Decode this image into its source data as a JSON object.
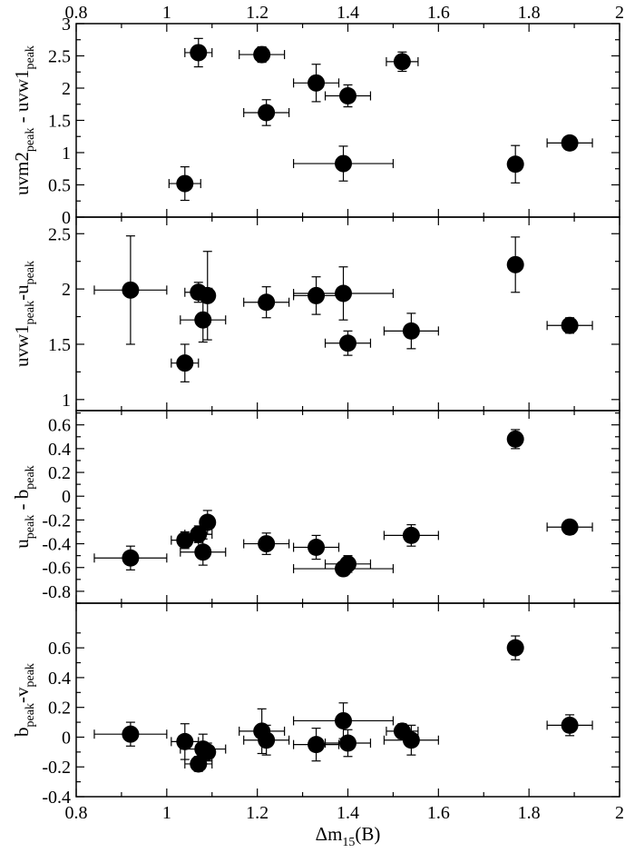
{
  "chart_data": {
    "type": "scatter",
    "layout": "four vertically stacked panels sharing x axis",
    "x_axis": {
      "label_main": "Δm",
      "label_sub": "15",
      "label_tail": "(B)",
      "range": [
        0.8,
        2.0
      ],
      "ticks": [
        0.8,
        1,
        1.2,
        1.4,
        1.6,
        1.8,
        2
      ],
      "tick_labels": [
        "0.8",
        "1",
        "1.2",
        "1.4",
        "1.6",
        "1.8",
        "2"
      ],
      "top_tick_labels": true
    },
    "grid": false,
    "panels": [
      {
        "ylabel_parts": [
          [
            "uvm2",
            false
          ],
          [
            "peak",
            true
          ],
          [
            " - uvw1",
            false
          ],
          [
            "peak",
            true
          ]
        ],
        "ylim": [
          0,
          3
        ],
        "yticks": [
          0,
          0.5,
          1,
          1.5,
          2,
          2.5,
          3
        ],
        "ytick_labels": [
          "0",
          "0.5",
          "1",
          "1.5",
          "2",
          "2.5",
          "3"
        ],
        "points": [
          {
            "x": 1.04,
            "y": 0.52,
            "xerr": 0.035,
            "yerr": 0.26
          },
          {
            "x": 1.07,
            "y": 2.55,
            "xerr": 0.03,
            "yerr": 0.22
          },
          {
            "x": 1.21,
            "y": 2.52,
            "xerr": 0.05,
            "yerr": 0.12
          },
          {
            "x": 1.22,
            "y": 1.62,
            "xerr": 0.05,
            "yerr": 0.2
          },
          {
            "x": 1.33,
            "y": 2.08,
            "xerr": 0.05,
            "yerr": 0.29
          },
          {
            "x": 1.39,
            "y": 0.83,
            "xerr": 0.11,
            "yerr": 0.27
          },
          {
            "x": 1.4,
            "y": 1.88,
            "xerr": 0.05,
            "yerr": 0.17
          },
          {
            "x": 1.52,
            "y": 2.41,
            "xerr": 0.035,
            "yerr": 0.15
          },
          {
            "x": 1.77,
            "y": 0.82,
            "xerr": 0.0,
            "yerr": 0.29
          },
          {
            "x": 1.89,
            "y": 1.15,
            "xerr": 0.05,
            "yerr": 0.06
          }
        ]
      },
      {
        "ylabel_parts": [
          [
            "uvw1",
            false
          ],
          [
            "peak",
            true
          ],
          [
            "-u",
            false
          ],
          [
            "peak",
            true
          ]
        ],
        "ylim": [
          0.9,
          2.65
        ],
        "yticks": [
          1,
          1.5,
          2,
          2.5
        ],
        "ytick_labels": [
          "1",
          "1.5",
          "2",
          "2.5"
        ],
        "points": [
          {
            "x": 0.92,
            "y": 1.99,
            "xerr": 0.08,
            "yerr": 0.49
          },
          {
            "x": 1.04,
            "y": 1.33,
            "xerr": 0.03,
            "yerr": 0.17
          },
          {
            "x": 1.07,
            "y": 1.97,
            "xerr": 0.03,
            "yerr": 0.09
          },
          {
            "x": 1.08,
            "y": 1.72,
            "xerr": 0.05,
            "yerr": 0.2
          },
          {
            "x": 1.09,
            "y": 1.94,
            "xerr": 0.0,
            "yerr": 0.4
          },
          {
            "x": 1.22,
            "y": 1.88,
            "xerr": 0.05,
            "yerr": 0.14
          },
          {
            "x": 1.33,
            "y": 1.94,
            "xerr": 0.05,
            "yerr": 0.17
          },
          {
            "x": 1.39,
            "y": 1.96,
            "xerr": 0.11,
            "yerr": 0.24
          },
          {
            "x": 1.4,
            "y": 1.51,
            "xerr": 0.05,
            "yerr": 0.11
          },
          {
            "x": 1.54,
            "y": 1.62,
            "xerr": 0.06,
            "yerr": 0.16
          },
          {
            "x": 1.77,
            "y": 2.22,
            "xerr": 0.0,
            "yerr": 0.25
          },
          {
            "x": 1.89,
            "y": 1.67,
            "xerr": 0.05,
            "yerr": 0.07
          }
        ]
      },
      {
        "ylabel_parts": [
          [
            "u",
            false
          ],
          [
            "peak",
            true
          ],
          [
            " - b",
            false
          ],
          [
            "peak",
            true
          ]
        ],
        "ylim": [
          -0.9,
          0.72
        ],
        "yticks": [
          -0.8,
          -0.6,
          -0.4,
          -0.2,
          0,
          0.2,
          0.4,
          0.6
        ],
        "ytick_labels": [
          "-0.8",
          "-0.6",
          "-0.4",
          "-0.2",
          "0",
          "0.2",
          "0.4",
          "0.6"
        ],
        "points": [
          {
            "x": 0.92,
            "y": -0.52,
            "xerr": 0.08,
            "yerr": 0.1
          },
          {
            "x": 1.04,
            "y": -0.37,
            "xerr": 0.03,
            "yerr": 0.07
          },
          {
            "x": 1.07,
            "y": -0.32,
            "xerr": 0.03,
            "yerr": 0.07
          },
          {
            "x": 1.08,
            "y": -0.47,
            "xerr": 0.05,
            "yerr": 0.11
          },
          {
            "x": 1.09,
            "y": -0.22,
            "xerr": 0.0,
            "yerr": 0.1
          },
          {
            "x": 1.22,
            "y": -0.4,
            "xerr": 0.05,
            "yerr": 0.09
          },
          {
            "x": 1.33,
            "y": -0.43,
            "xerr": 0.05,
            "yerr": 0.1
          },
          {
            "x": 1.39,
            "y": -0.61,
            "xerr": 0.11,
            "yerr": 0.06
          },
          {
            "x": 1.4,
            "y": -0.57,
            "xerr": 0.05,
            "yerr": 0.07
          },
          {
            "x": 1.54,
            "y": -0.33,
            "xerr": 0.06,
            "yerr": 0.09
          },
          {
            "x": 1.77,
            "y": 0.48,
            "xerr": 0.0,
            "yerr": 0.08
          },
          {
            "x": 1.89,
            "y": -0.26,
            "xerr": 0.05,
            "yerr": 0.06
          }
        ]
      },
      {
        "ylabel_parts": [
          [
            "b",
            false
          ],
          [
            "peak",
            true
          ],
          [
            "-v",
            false
          ],
          [
            "peak",
            true
          ]
        ],
        "ylim": [
          -0.4,
          0.9
        ],
        "yticks": [
          -0.4,
          -0.2,
          0,
          0.2,
          0.4,
          0.6
        ],
        "ytick_labels": [
          "-0.4",
          "-0.2",
          "0",
          "0.2",
          "0.4",
          "0.6"
        ],
        "points": [
          {
            "x": 0.92,
            "y": 0.02,
            "xerr": 0.08,
            "yerr": 0.08
          },
          {
            "x": 1.04,
            "y": -0.03,
            "xerr": 0.03,
            "yerr": 0.12
          },
          {
            "x": 1.07,
            "y": -0.18,
            "xerr": 0.03,
            "yerr": 0.05
          },
          {
            "x": 1.08,
            "y": -0.08,
            "xerr": 0.05,
            "yerr": 0.1
          },
          {
            "x": 1.09,
            "y": -0.1,
            "xerr": 0.0,
            "yerr": 0.06
          },
          {
            "x": 1.21,
            "y": 0.04,
            "xerr": 0.05,
            "yerr": 0.15
          },
          {
            "x": 1.22,
            "y": -0.02,
            "xerr": 0.05,
            "yerr": 0.1
          },
          {
            "x": 1.33,
            "y": -0.05,
            "xerr": 0.05,
            "yerr": 0.11
          },
          {
            "x": 1.39,
            "y": 0.11,
            "xerr": 0.11,
            "yerr": 0.12
          },
          {
            "x": 1.4,
            "y": -0.04,
            "xerr": 0.05,
            "yerr": 0.09
          },
          {
            "x": 1.52,
            "y": 0.04,
            "xerr": 0.035,
            "yerr": 0.05
          },
          {
            "x": 1.54,
            "y": -0.02,
            "xerr": 0.06,
            "yerr": 0.1
          },
          {
            "x": 1.77,
            "y": 0.6,
            "xerr": 0.0,
            "yerr": 0.08
          },
          {
            "x": 1.89,
            "y": 0.08,
            "xerr": 0.05,
            "yerr": 0.07
          }
        ]
      }
    ]
  }
}
